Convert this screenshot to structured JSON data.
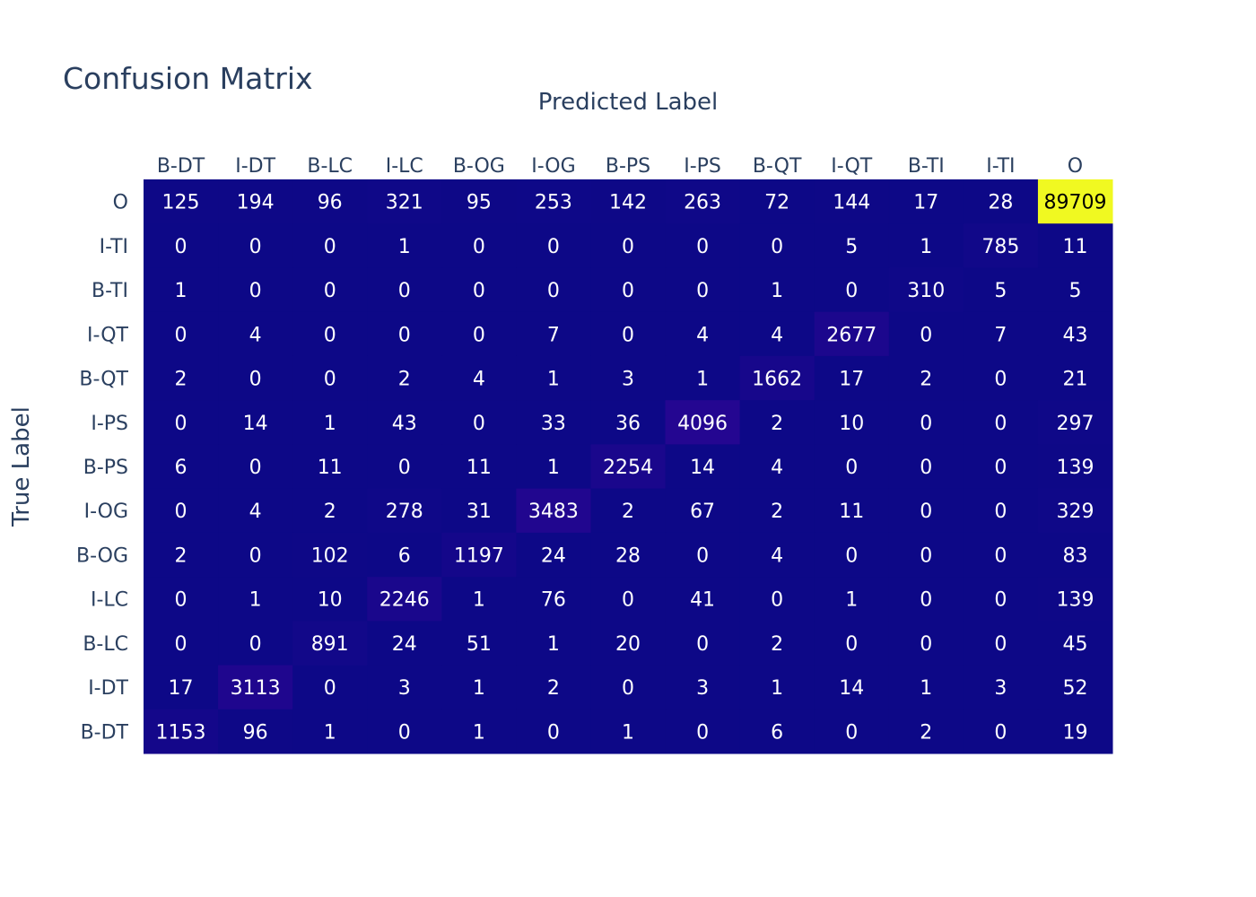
{
  "chart_data": {
    "type": "heatmap",
    "title": "Confusion Matrix",
    "xlabel": "Predicted Label",
    "ylabel": "True Label",
    "x_categories": [
      "B-DT",
      "I-DT",
      "B-LC",
      "I-LC",
      "B-OG",
      "I-OG",
      "B-PS",
      "I-PS",
      "B-QT",
      "I-QT",
      "B-TI",
      "I-TI",
      "O"
    ],
    "y_categories_top_to_bottom": [
      "O",
      "I-TI",
      "B-TI",
      "I-QT",
      "B-QT",
      "I-PS",
      "B-PS",
      "I-OG",
      "B-OG",
      "I-LC",
      "B-LC",
      "I-DT",
      "B-DT"
    ],
    "values": [
      [
        125,
        194,
        96,
        321,
        95,
        253,
        142,
        263,
        72,
        144,
        17,
        28,
        89709
      ],
      [
        0,
        0,
        0,
        1,
        0,
        0,
        0,
        0,
        0,
        5,
        1,
        785,
        11
      ],
      [
        1,
        0,
        0,
        0,
        0,
        0,
        0,
        0,
        1,
        0,
        310,
        5,
        5
      ],
      [
        0,
        4,
        0,
        0,
        0,
        7,
        0,
        4,
        4,
        2677,
        0,
        7,
        43
      ],
      [
        2,
        0,
        0,
        2,
        4,
        1,
        3,
        1,
        1662,
        17,
        2,
        0,
        21
      ],
      [
        0,
        14,
        1,
        43,
        0,
        33,
        36,
        4096,
        2,
        10,
        0,
        0,
        297
      ],
      [
        6,
        0,
        11,
        0,
        11,
        1,
        2254,
        14,
        4,
        0,
        0,
        0,
        139
      ],
      [
        0,
        4,
        2,
        278,
        31,
        3483,
        2,
        67,
        2,
        11,
        0,
        0,
        329
      ],
      [
        2,
        0,
        102,
        6,
        1197,
        24,
        28,
        0,
        4,
        0,
        0,
        0,
        83
      ],
      [
        0,
        1,
        10,
        2246,
        1,
        76,
        0,
        41,
        0,
        1,
        0,
        0,
        139
      ],
      [
        0,
        0,
        891,
        24,
        51,
        1,
        20,
        0,
        2,
        0,
        0,
        0,
        45
      ],
      [
        17,
        3113,
        0,
        3,
        1,
        2,
        0,
        3,
        1,
        14,
        1,
        3,
        52
      ],
      [
        1153,
        96,
        1,
        0,
        1,
        0,
        1,
        0,
        6,
        0,
        2,
        0,
        19
      ]
    ],
    "colorscale": [
      "#0d0887",
      "#46039f",
      "#7201a8",
      "#9c179e",
      "#bd3786",
      "#d8576b",
      "#ed7953",
      "#fb9f3a",
      "#fdca26",
      "#f0f921"
    ],
    "zmin": 0,
    "zmax": 89709,
    "x_axis_position": "top",
    "legend": "none",
    "grid": false
  }
}
